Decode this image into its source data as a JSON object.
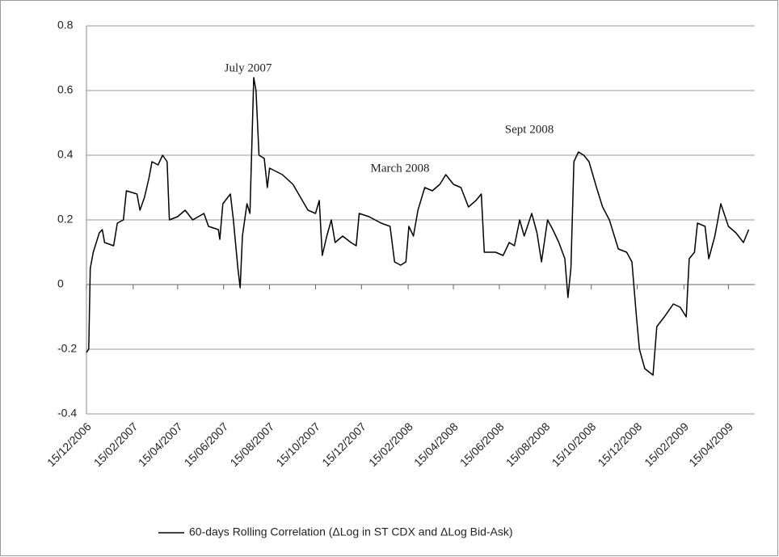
{
  "chart_data": {
    "type": "line",
    "x": [
      "2006-12-15",
      "2006-12-18",
      "2006-12-20",
      "2006-12-24",
      "2007-01-01",
      "2007-01-05",
      "2007-01-08",
      "2007-01-20",
      "2007-01-25",
      "2007-02-02",
      "2007-02-06",
      "2007-02-20",
      "2007-02-24",
      "2007-03-02",
      "2007-03-08",
      "2007-03-12",
      "2007-03-20",
      "2007-03-26",
      "2007-04-01",
      "2007-04-04",
      "2007-04-15",
      "2007-04-25",
      "2007-05-05",
      "2007-05-20",
      "2007-05-26",
      "2007-06-08",
      "2007-06-10",
      "2007-06-14",
      "2007-06-24",
      "2007-06-28",
      "2007-07-04",
      "2007-07-07",
      "2007-07-10",
      "2007-07-16",
      "2007-07-20",
      "2007-07-25",
      "2007-07-28",
      "2007-08-01",
      "2007-08-08",
      "2007-08-12",
      "2007-08-15",
      "2007-09-01",
      "2007-09-15",
      "2007-09-25",
      "2007-10-05",
      "2007-10-15",
      "2007-10-20",
      "2007-10-24",
      "2007-10-30",
      "2007-11-05",
      "2007-11-10",
      "2007-11-20",
      "2007-12-01",
      "2007-12-08",
      "2007-12-12",
      "2007-12-25",
      "2008-01-10",
      "2008-01-22",
      "2008-01-28",
      "2008-02-05",
      "2008-02-12",
      "2008-02-16",
      "2008-02-22",
      "2008-02-28",
      "2008-03-08",
      "2008-03-18",
      "2008-03-28",
      "2008-04-05",
      "2008-04-15",
      "2008-04-25",
      "2008-05-05",
      "2008-05-15",
      "2008-05-22",
      "2008-05-26",
      "2008-06-10",
      "2008-06-20",
      "2008-06-28",
      "2008-07-05",
      "2008-07-12",
      "2008-07-18",
      "2008-07-28",
      "2008-08-04",
      "2008-08-10",
      "2008-08-18",
      "2008-08-25",
      "2008-09-02",
      "2008-09-10",
      "2008-09-14",
      "2008-09-18",
      "2008-09-22",
      "2008-09-28",
      "2008-10-05",
      "2008-10-12",
      "2008-10-22",
      "2008-10-30",
      "2008-11-08",
      "2008-11-20",
      "2008-12-01",
      "2008-12-08",
      "2008-12-14",
      "2008-12-18",
      "2008-12-25",
      "2009-01-05",
      "2009-01-10",
      "2009-01-20",
      "2009-02-01",
      "2009-02-10",
      "2009-02-18",
      "2009-02-22",
      "2009-03-01",
      "2009-03-05",
      "2009-03-15",
      "2009-03-20",
      "2009-03-28",
      "2009-04-05",
      "2009-04-15",
      "2009-04-25",
      "2009-05-05",
      "2009-05-12"
    ],
    "series": [
      {
        "name": "60-days Rolling Correlation (ΔLog in ST CDX and ΔLog Bid-Ask)",
        "color": "#000000",
        "values": [
          -0.21,
          -0.2,
          0.05,
          0.1,
          0.16,
          0.17,
          0.13,
          0.12,
          0.19,
          0.2,
          0.29,
          0.28,
          0.23,
          0.27,
          0.33,
          0.38,
          0.37,
          0.4,
          0.38,
          0.2,
          0.21,
          0.23,
          0.2,
          0.22,
          0.18,
          0.17,
          0.14,
          0.25,
          0.28,
          0.2,
          0.05,
          -0.01,
          0.15,
          0.25,
          0.22,
          0.64,
          0.6,
          0.4,
          0.39,
          0.3,
          0.36,
          0.34,
          0.31,
          0.27,
          0.23,
          0.22,
          0.26,
          0.09,
          0.15,
          0.2,
          0.13,
          0.15,
          0.13,
          0.12,
          0.22,
          0.21,
          0.19,
          0.18,
          0.07,
          0.06,
          0.07,
          0.18,
          0.15,
          0.23,
          0.3,
          0.29,
          0.31,
          0.34,
          0.31,
          0.3,
          0.24,
          0.26,
          0.28,
          0.1,
          0.1,
          0.09,
          0.13,
          0.12,
          0.2,
          0.15,
          0.22,
          0.16,
          0.07,
          0.2,
          0.17,
          0.13,
          0.08,
          -0.04,
          0.05,
          0.38,
          0.41,
          0.4,
          0.38,
          0.3,
          0.24,
          0.2,
          0.11,
          0.1,
          0.07,
          -0.1,
          -0.2,
          -0.26,
          -0.28,
          -0.13,
          -0.1,
          -0.06,
          -0.07,
          -0.1,
          0.08,
          0.1,
          0.19,
          0.18,
          0.08,
          0.15,
          0.25,
          0.18,
          0.16,
          0.13,
          0.17
        ]
      }
    ],
    "xlim": [
      "2006-12-15",
      "2009-05-20"
    ],
    "xticks": [
      {
        "value": "2006-12-15",
        "label": "15/12/2006"
      },
      {
        "value": "2007-02-15",
        "label": "15/02/2007"
      },
      {
        "value": "2007-04-15",
        "label": "15/04/2007"
      },
      {
        "value": "2007-06-15",
        "label": "15/06/2007"
      },
      {
        "value": "2007-08-15",
        "label": "15/08/2007"
      },
      {
        "value": "2007-10-15",
        "label": "15/10/2007"
      },
      {
        "value": "2007-12-15",
        "label": "15/12/2007"
      },
      {
        "value": "2008-02-15",
        "label": "15/02/2008"
      },
      {
        "value": "2008-04-15",
        "label": "15/04/2008"
      },
      {
        "value": "2008-06-15",
        "label": "15/06/2008"
      },
      {
        "value": "2008-08-15",
        "label": "15/08/2008"
      },
      {
        "value": "2008-10-15",
        "label": "15/10/2008"
      },
      {
        "value": "2008-12-15",
        "label": "15/12/2008"
      },
      {
        "value": "2009-02-15",
        "label": "15/02/2009"
      },
      {
        "value": "2009-04-15",
        "label": "15/04/2009"
      }
    ],
    "ylim": [
      -0.4,
      0.8
    ],
    "yticks": [
      -0.4,
      -0.2,
      0,
      0.2,
      0.4,
      0.6,
      0.8
    ],
    "grid": true,
    "legend": "bottom",
    "annotations": [
      "July 2007",
      "March 2008",
      "Sept 2008"
    ]
  }
}
